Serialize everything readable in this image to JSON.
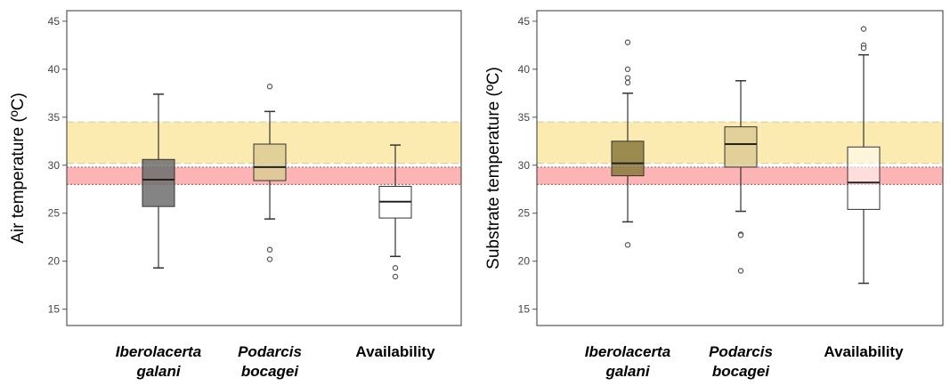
{
  "chart_data": [
    {
      "type": "boxplot",
      "title": "",
      "xlabel": "",
      "ylabel": "Air temperature (ºC)",
      "ylim": [
        13.3,
        46.1
      ],
      "yticks": [
        15,
        20,
        25,
        30,
        35,
        40,
        45
      ],
      "bands": [
        {
          "from": 30.2,
          "to": 34.5,
          "color": "#FBEBB0",
          "edge": "#D9CFA3"
        },
        {
          "from": 28.0,
          "to": 29.8,
          "color": "#FDB4B4",
          "edge": "#B07070"
        }
      ],
      "categories": [
        {
          "line1": "Iberolacerta",
          "line2": "galani",
          "italic": true
        },
        {
          "line1": "Podarcis",
          "line2": "bocagei",
          "italic": true
        },
        {
          "line1": "Availability",
          "line2": "",
          "italic": false
        }
      ],
      "boxes": [
        {
          "whisker_low": 19.3,
          "q1": 25.7,
          "median": 28.5,
          "q3": 30.6,
          "whisker_high": 37.4,
          "outliers": [],
          "color": "#6E6E6E"
        },
        {
          "whisker_low": 24.4,
          "q1": 28.4,
          "median": 29.8,
          "q3": 32.2,
          "whisker_high": 35.6,
          "outliers": [
            38.2,
            21.2,
            20.2
          ],
          "color": "#DCCB94"
        },
        {
          "whisker_low": 20.5,
          "q1": 24.5,
          "median": 26.2,
          "q3": 27.8,
          "whisker_high": 32.1,
          "outliers": [
            19.3,
            18.4
          ],
          "color": "#FFFFFF"
        }
      ]
    },
    {
      "type": "boxplot",
      "title": "",
      "xlabel": "",
      "ylabel": "Substrate temperature (ºC)",
      "ylim": [
        13.3,
        46.1
      ],
      "yticks": [
        15,
        20,
        25,
        30,
        35,
        40,
        45
      ],
      "bands": [
        {
          "from": 30.2,
          "to": 34.5,
          "color": "#FBEBB0",
          "edge": "#D9CFA3"
        },
        {
          "from": 28.0,
          "to": 29.8,
          "color": "#FDB4B4",
          "edge": "#B07070"
        }
      ],
      "categories": [
        {
          "line1": "Iberolacerta",
          "line2": "galani",
          "italic": true
        },
        {
          "line1": "Podarcis",
          "line2": "bocagei",
          "italic": true
        },
        {
          "line1": "Availability",
          "line2": "",
          "italic": false
        }
      ],
      "boxes": [
        {
          "whisker_low": 24.1,
          "q1": 28.9,
          "median": 30.2,
          "q3": 32.5,
          "whisker_high": 37.5,
          "outliers": [
            42.8,
            40.0,
            39.1,
            38.6,
            21.7
          ],
          "color": "#8A7A3E"
        },
        {
          "whisker_low": 25.2,
          "q1": 29.8,
          "median": 32.2,
          "q3": 34.0,
          "whisker_high": 38.8,
          "outliers": [
            22.8,
            22.7,
            19.0
          ],
          "color": "#DCCB94"
        },
        {
          "whisker_low": 17.7,
          "q1": 25.4,
          "median": 28.2,
          "q3": 31.9,
          "whisker_high": 41.5,
          "outliers": [
            44.2,
            42.5,
            42.2
          ],
          "color": "#FFFFFF"
        }
      ]
    }
  ]
}
